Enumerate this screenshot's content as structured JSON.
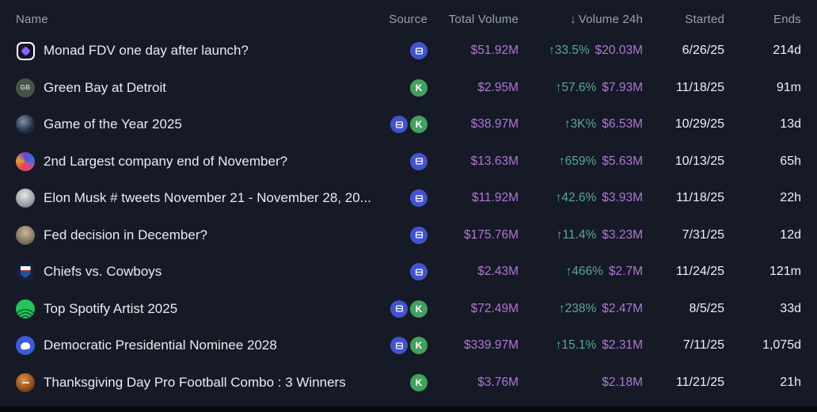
{
  "colors": {
    "background": "#151a26",
    "accent_purple": "#b175d4",
    "accent_green": "#5aa893",
    "polymarket_blue": "#4353cf",
    "kalshi_green": "#43a05e",
    "header_text": "#99a1af",
    "row_text": "#e9ebef"
  },
  "table": {
    "columns": [
      {
        "key": "name",
        "label": "Name"
      },
      {
        "key": "source",
        "label": "Source"
      },
      {
        "key": "total_volume",
        "label": "Total Volume"
      },
      {
        "key": "volume_24h",
        "label": "Volume 24h",
        "sort_indicator": "↓"
      },
      {
        "key": "started",
        "label": "Started"
      },
      {
        "key": "ends",
        "label": "Ends"
      }
    ],
    "source_icons": {
      "polymarket": "polymarket-icon",
      "kalshi": "kalshi-icon",
      "kalshi_letter": "K"
    },
    "rows": [
      {
        "name": "Monad FDV one day after launch?",
        "avatar": "monad",
        "sources": [
          "polymarket"
        ],
        "total_volume": "$51.92M",
        "change_24h": "↑33.5%",
        "volume_24h": "$20.03M",
        "started": "6/26/25",
        "ends": "214d"
      },
      {
        "name": "Green Bay at Detroit",
        "avatar": "green-bay",
        "avatar_label": "GB",
        "sources": [
          "kalshi"
        ],
        "total_volume": "$2.95M",
        "change_24h": "↑57.6%",
        "volume_24h": "$7.93M",
        "started": "11/18/25",
        "ends": "91m"
      },
      {
        "name": "Game of the Year 2025",
        "avatar": "game-of-the-year",
        "sources": [
          "polymarket",
          "kalshi"
        ],
        "total_volume": "$38.97M",
        "change_24h": "↑3K%",
        "volume_24h": "$6.53M",
        "started": "10/29/25",
        "ends": "13d"
      },
      {
        "name": "2nd Largest company end of November?",
        "avatar": "companies",
        "sources": [
          "polymarket"
        ],
        "total_volume": "$13.63M",
        "change_24h": "↑659%",
        "volume_24h": "$5.63M",
        "started": "10/13/25",
        "ends": "65h"
      },
      {
        "name": "Elon Musk # tweets November 21 - November 28, 20...",
        "avatar": "elon-musk",
        "sources": [
          "polymarket"
        ],
        "total_volume": "$11.92M",
        "change_24h": "↑42.6%",
        "volume_24h": "$3.93M",
        "started": "11/18/25",
        "ends": "22h"
      },
      {
        "name": "Fed decision in December?",
        "avatar": "fed",
        "sources": [
          "polymarket"
        ],
        "total_volume": "$175.76M",
        "change_24h": "↑11.4%",
        "volume_24h": "$3.23M",
        "started": "7/31/25",
        "ends": "12d"
      },
      {
        "name": "Chiefs vs. Cowboys",
        "avatar": "nfl",
        "sources": [
          "polymarket"
        ],
        "total_volume": "$2.43M",
        "change_24h": "↑466%",
        "volume_24h": "$2.7M",
        "started": "11/24/25",
        "ends": "121m"
      },
      {
        "name": "Top Spotify Artist 2025",
        "avatar": "spotify",
        "sources": [
          "polymarket",
          "kalshi"
        ],
        "total_volume": "$72.49M",
        "change_24h": "↑238%",
        "volume_24h": "$2.47M",
        "started": "8/5/25",
        "ends": "33d"
      },
      {
        "name": "Democratic Presidential Nominee 2028",
        "avatar": "democratic",
        "sources": [
          "polymarket",
          "kalshi"
        ],
        "total_volume": "$339.97M",
        "change_24h": "↑15.1%",
        "volume_24h": "$2.31M",
        "started": "7/11/25",
        "ends": "1,075d"
      },
      {
        "name": "Thanksgiving Day Pro Football Combo : 3 Winners",
        "avatar": "football",
        "sources": [
          "kalshi"
        ],
        "total_volume": "$3.76M",
        "change_24h": "",
        "volume_24h": "$2.18M",
        "started": "11/21/25",
        "ends": "21h"
      }
    ]
  }
}
